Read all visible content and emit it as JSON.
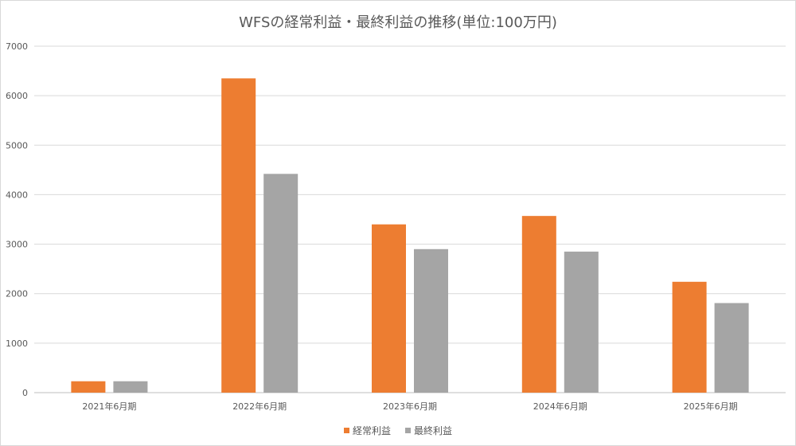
{
  "chart_data": {
    "type": "bar",
    "title": "WFSの経常利益・最終利益の推移(単位:100万円)",
    "categories": [
      "2021年6月期",
      "2022年6月期",
      "2023年6月期",
      "2024年6月期",
      "2025年6月期"
    ],
    "series": [
      {
        "name": "経常利益",
        "color": "#ed7d31",
        "values": [
          230,
          6350,
          3400,
          3570,
          2240
        ]
      },
      {
        "name": "最終利益",
        "color": "#a5a5a5",
        "values": [
          230,
          4420,
          2900,
          2850,
          1810
        ]
      }
    ],
    "ylim": [
      0,
      7000
    ],
    "yticks": [
      0,
      1000,
      2000,
      3000,
      4000,
      5000,
      6000,
      7000
    ],
    "grid": true,
    "legend": "bottom"
  }
}
